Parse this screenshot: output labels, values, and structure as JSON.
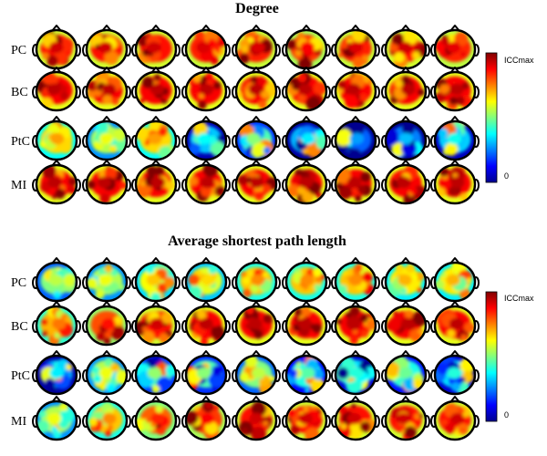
{
  "panels": [
    {
      "title": "Degree",
      "rows": [
        {
          "label": "PC",
          "levels": [
            0.86,
            0.86,
            0.86,
            0.85,
            0.85,
            0.82,
            0.85,
            0.86,
            0.84
          ]
        },
        {
          "label": "BC",
          "levels": [
            0.88,
            0.88,
            0.88,
            0.88,
            0.88,
            0.88,
            0.88,
            0.88,
            0.88
          ]
        },
        {
          "label": "PtC",
          "levels": [
            0.66,
            0.55,
            0.66,
            0.32,
            0.45,
            0.3,
            0.22,
            0.25,
            0.33
          ]
        },
        {
          "label": "MI",
          "levels": [
            0.88,
            0.88,
            0.88,
            0.88,
            0.88,
            0.88,
            0.88,
            0.88,
            0.88
          ]
        }
      ],
      "colorbar": {
        "max_label": "ICCmax",
        "min_label": "0"
      }
    },
    {
      "title": "Average shortest path length",
      "rows": [
        {
          "label": "PC",
          "levels": [
            0.5,
            0.55,
            0.62,
            0.6,
            0.68,
            0.68,
            0.68,
            0.64,
            0.64
          ]
        },
        {
          "label": "BC",
          "levels": [
            0.7,
            0.8,
            0.86,
            0.88,
            0.88,
            0.88,
            0.88,
            0.88,
            0.88
          ]
        },
        {
          "label": "PtC",
          "levels": [
            0.3,
            0.55,
            0.46,
            0.45,
            0.5,
            0.4,
            0.35,
            0.42,
            0.35
          ]
        },
        {
          "label": "MI",
          "levels": [
            0.55,
            0.68,
            0.78,
            0.82,
            0.86,
            0.86,
            0.86,
            0.86,
            0.86
          ]
        }
      ],
      "colorbar": {
        "max_label": "ICCmax",
        "min_label": "0"
      }
    }
  ],
  "colors": {
    "jet_stops": [
      "#00008f",
      "#0000ff",
      "#0080ff",
      "#00ffff",
      "#80ff80",
      "#ffff00",
      "#ff8000",
      "#ff0000",
      "#800000"
    ],
    "head_outline": "#000000"
  }
}
